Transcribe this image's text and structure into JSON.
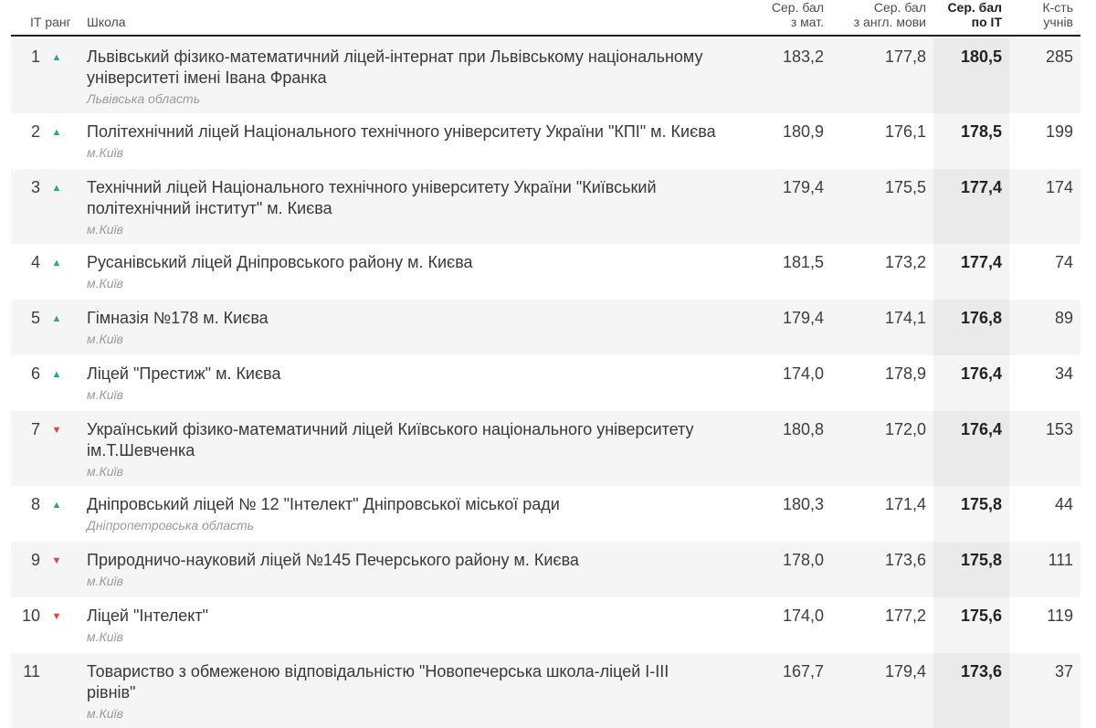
{
  "colors": {
    "up": "#26a69a",
    "down": "#dd4338",
    "row_stripe": "#f5f5f5",
    "it_col_bg": "rgba(0,0,0,0.045)",
    "header_border": "#1c1c1c"
  },
  "icons": {
    "up": "▲",
    "down": "▼"
  },
  "chart_data": {
    "type": "table",
    "headers": {
      "rank": "ІТ ранг",
      "school": "Школа",
      "math_line1": "Сер. бал",
      "math_line2": "з мат.",
      "eng_line1": "Сер. бал",
      "eng_line2": "з англ. мови",
      "it_line1": "Сер. бал",
      "it_line2": "по ІТ",
      "students_line1": "К-сть",
      "students_line2": "учнів"
    },
    "rows": [
      {
        "rank": "1",
        "trend": "up",
        "name": "Львівський фізико-математичний ліцей-інтернат при Львівському національному університеті імені Івана Франка",
        "region": "Львівська область",
        "math": "183,2",
        "eng": "177,8",
        "it": "180,5",
        "students": "285"
      },
      {
        "rank": "2",
        "trend": "up",
        "name": "Політехнічний ліцей Національного технічного університету України \"КПІ\" м. Києва",
        "region": "м.Київ",
        "math": "180,9",
        "eng": "176,1",
        "it": "178,5",
        "students": "199"
      },
      {
        "rank": "3",
        "trend": "up",
        "name": "Технічний ліцей Національного технічного університету України \"Київський політехнічний інститут\" м. Києва",
        "region": "м.Київ",
        "math": "179,4",
        "eng": "175,5",
        "it": "177,4",
        "students": "174"
      },
      {
        "rank": "4",
        "trend": "up",
        "name": "Русанівський ліцей Дніпровського району м. Києва",
        "region": "м.Київ",
        "math": "181,5",
        "eng": "173,2",
        "it": "177,4",
        "students": "74"
      },
      {
        "rank": "5",
        "trend": "up",
        "name": "Гімназія №178 м. Києва",
        "region": "м.Київ",
        "math": "179,4",
        "eng": "174,1",
        "it": "176,8",
        "students": "89"
      },
      {
        "rank": "6",
        "trend": "up",
        "name": "Ліцей \"Престиж\" м. Києва",
        "region": "м.Київ",
        "math": "174,0",
        "eng": "178,9",
        "it": "176,4",
        "students": "34"
      },
      {
        "rank": "7",
        "trend": "down",
        "name": "Український фізико-математичний ліцей Київського національного університету ім.Т.Шевченка",
        "region": "м.Київ",
        "math": "180,8",
        "eng": "172,0",
        "it": "176,4",
        "students": "153"
      },
      {
        "rank": "8",
        "trend": "up",
        "name": "Дніпровський ліцей № 12 \"Інтелект\" Дніпровської міської ради",
        "region": "Дніпропетровська область",
        "math": "180,3",
        "eng": "171,4",
        "it": "175,8",
        "students": "44"
      },
      {
        "rank": "9",
        "trend": "down",
        "name": "Природничо-науковий ліцей №145 Печерського району м. Києва",
        "region": "м.Київ",
        "math": "178,0",
        "eng": "173,6",
        "it": "175,8",
        "students": "111"
      },
      {
        "rank": "10",
        "trend": "down",
        "name": "Ліцей \"Інтелект\"",
        "region": "м.Київ",
        "math": "174,0",
        "eng": "177,2",
        "it": "175,6",
        "students": "119"
      },
      {
        "rank": "11",
        "trend": "none",
        "name": "Товариство з обмеженою відповідальністю \"Новопечерська школа-ліцей І-ІІІ рівнів\"",
        "region": "м.Київ",
        "math": "167,7",
        "eng": "179,4",
        "it": "173,6",
        "students": "37"
      }
    ]
  }
}
